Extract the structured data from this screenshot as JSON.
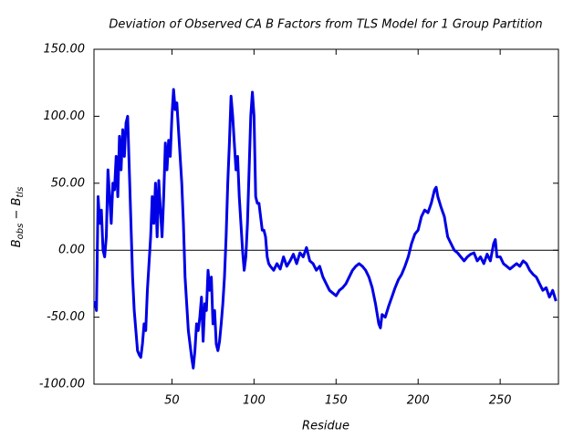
{
  "chart_data": {
    "type": "line",
    "title": "Deviation of Observed CA B Factors from TLS Model for 1 Group Partition",
    "xlabel": "Residue",
    "ylabel": [
      "B",
      "obs",
      " − B",
      "tls"
    ],
    "xlim": [
      2.5,
      285.5
    ],
    "ylim": [
      -100,
      150
    ],
    "xticks": [
      50,
      100,
      150,
      200,
      250
    ],
    "yticks": [
      {
        "value": -100,
        "label": "-100.00"
      },
      {
        "value": -50,
        "label": "-50.00"
      },
      {
        "value": 0,
        "label": "0.00"
      },
      {
        "value": 50,
        "label": "50.00"
      },
      {
        "value": 100,
        "label": "100.00"
      },
      {
        "value": 150,
        "label": "150.00"
      }
    ],
    "hline": 0,
    "grid": false,
    "series": [
      {
        "color": "#0000e6",
        "x": [
          3,
          4,
          5,
          6,
          7,
          8,
          9,
          10,
          11,
          12,
          13,
          14,
          15,
          16,
          17,
          18,
          19,
          20,
          21,
          22,
          23,
          24,
          25,
          26,
          27,
          28,
          29,
          30,
          31,
          32,
          33,
          34,
          35,
          36,
          37,
          38,
          39,
          40,
          41,
          42,
          43,
          44,
          45,
          46,
          47,
          48,
          49,
          50,
          51,
          52,
          53,
          54,
          55,
          56,
          57,
          58,
          59,
          60,
          61,
          62,
          63,
          64,
          65,
          66,
          67,
          68,
          69,
          70,
          71,
          72,
          73,
          74,
          75,
          76,
          77,
          78,
          79,
          80,
          81,
          82,
          83,
          84,
          85,
          86,
          87,
          88,
          89,
          90,
          91,
          92,
          93,
          94,
          95,
          96,
          97,
          98,
          99,
          100,
          101,
          102,
          103,
          104,
          105,
          106,
          107,
          108,
          109,
          110,
          112,
          114,
          116,
          118,
          120,
          122,
          124,
          126,
          128,
          130,
          132,
          134,
          136,
          138,
          140,
          142,
          144,
          146,
          148,
          150,
          152,
          154,
          156,
          158,
          160,
          162,
          164,
          166,
          168,
          170,
          172,
          174,
          176,
          177,
          178,
          180,
          182,
          184,
          186,
          188,
          190,
          192,
          194,
          196,
          198,
          200,
          202,
          204,
          206,
          208,
          210,
          211,
          212,
          214,
          216,
          218,
          220,
          222,
          224,
          226,
          228,
          230,
          232,
          234,
          236,
          238,
          240,
          242,
          244,
          246,
          247,
          248,
          250,
          252,
          254,
          256,
          258,
          260,
          262,
          264,
          266,
          268,
          270,
          272,
          274,
          276,
          278,
          280,
          282,
          284
        ],
        "values": [
          -38,
          -45,
          40,
          20,
          30,
          0,
          -5,
          10,
          60,
          40,
          20,
          50,
          45,
          70,
          40,
          85,
          60,
          90,
          70,
          95,
          100,
          60,
          20,
          -20,
          -45,
          -60,
          -75,
          -78,
          -80,
          -70,
          -55,
          -60,
          -30,
          -10,
          10,
          40,
          20,
          50,
          10,
          52,
          30,
          10,
          40,
          80,
          60,
          82,
          70,
          100,
          120,
          105,
          110,
          90,
          70,
          50,
          20,
          -20,
          -40,
          -60,
          -70,
          -80,
          -88,
          -75,
          -55,
          -60,
          -50,
          -35,
          -68,
          -40,
          -45,
          -15,
          -30,
          -20,
          -55,
          -45,
          -70,
          -75,
          -68,
          -55,
          -40,
          -20,
          10,
          50,
          80,
          115,
          100,
          80,
          60,
          70,
          40,
          20,
          0,
          -15,
          -5,
          20,
          60,
          100,
          118,
          100,
          40,
          35,
          35,
          25,
          15,
          15,
          10,
          -5,
          -10,
          -12,
          -15,
          -10,
          -14,
          -5,
          -12,
          -8,
          -3,
          -10,
          -2,
          -5,
          2,
          -8,
          -10,
          -15,
          -12,
          -20,
          -25,
          -30,
          -32,
          -34,
          -30,
          -28,
          -25,
          -20,
          -15,
          -12,
          -10,
          -12,
          -15,
          -20,
          -28,
          -40,
          -55,
          -58,
          -48,
          -50,
          -42,
          -35,
          -28,
          -22,
          -18,
          -12,
          -5,
          5,
          12,
          15,
          25,
          30,
          28,
          35,
          45,
          47,
          40,
          32,
          25,
          10,
          5,
          0,
          -2,
          -5,
          -8,
          -5,
          -3,
          -2,
          -8,
          -5,
          -10,
          -3,
          -8,
          5,
          8,
          -5,
          -5,
          -10,
          -12,
          -14,
          -12,
          -10,
          -12,
          -8,
          -10,
          -15,
          -18,
          -20,
          -25,
          -30,
          -28,
          -35,
          -30,
          -38
        ]
      }
    ]
  }
}
